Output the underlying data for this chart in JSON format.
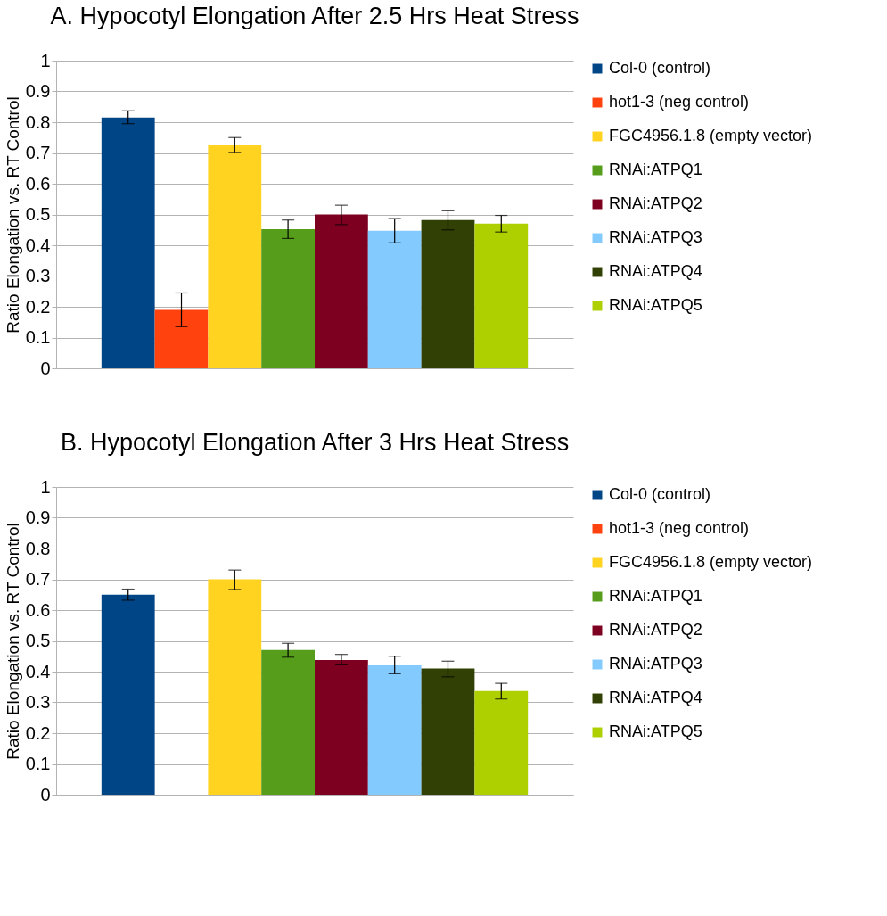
{
  "chart_data": [
    {
      "type": "bar",
      "title": "A.  Hypocotyl Elongation After 2.5 Hrs Heat Stress",
      "ylabel": "Ratio Elongation vs. RT Control",
      "categories": [
        null
      ],
      "ylim": [
        0,
        1
      ],
      "yticks": [
        0,
        0.1,
        0.2,
        0.3,
        0.4,
        0.5,
        0.6,
        0.7,
        0.8,
        0.9,
        1
      ],
      "grid": "y",
      "legend": "right",
      "series": [
        {
          "name": "Col-0 (control)",
          "color": "#004586",
          "values": [
            0.815
          ],
          "errors": [
            [
              0.795,
              0.837
            ]
          ]
        },
        {
          "name": "hot1-3 (neg control)",
          "color": "#ff420e",
          "values": [
            0.19
          ],
          "errors": [
            [
              0.135,
              0.245
            ]
          ]
        },
        {
          "name": "FGC4956.1.8 (empty vector)",
          "color": "#ffd320",
          "values": [
            0.725
          ],
          "errors": [
            [
              0.702,
              0.75
            ]
          ]
        },
        {
          "name": "RNAi:ATPQ1",
          "color": "#579d1c",
          "values": [
            0.452
          ],
          "errors": [
            [
              0.422,
              0.482
            ]
          ]
        },
        {
          "name": "RNAi:ATPQ2",
          "color": "#7e0021",
          "values": [
            0.5
          ],
          "errors": [
            [
              0.467,
              0.53
            ]
          ]
        },
        {
          "name": "RNAi:ATPQ3",
          "color": "#83caff",
          "values": [
            0.447
          ],
          "errors": [
            [
              0.408,
              0.487
            ]
          ]
        },
        {
          "name": "RNAi:ATPQ4",
          "color": "#314004",
          "values": [
            0.482
          ],
          "errors": [
            [
              0.45,
              0.512
            ]
          ]
        },
        {
          "name": "RNAi:ATPQ5",
          "color": "#aecf00",
          "values": [
            0.47
          ],
          "errors": [
            [
              0.443,
              0.497
            ]
          ]
        }
      ]
    },
    {
      "type": "bar",
      "title": "B. Hypocotyl Elongation After 3 Hrs Heat Stress",
      "ylabel": "Ratio Elongation vs. RT Control",
      "categories": [
        null
      ],
      "ylim": [
        0,
        1
      ],
      "yticks": [
        0,
        0.1,
        0.2,
        0.3,
        0.4,
        0.5,
        0.6,
        0.7,
        0.8,
        0.9,
        1
      ],
      "grid": "y",
      "legend": "right",
      "series": [
        {
          "name": "Col-0 (control)",
          "color": "#004586",
          "values": [
            0.65
          ],
          "errors": [
            [
              0.632,
              0.668
            ]
          ]
        },
        {
          "name": "hot1-3 (neg control)",
          "color": "#ff420e",
          "values": [
            null
          ],
          "errors": [
            null
          ]
        },
        {
          "name": "FGC4956.1.8 (empty vector)",
          "color": "#ffd320",
          "values": [
            0.7
          ],
          "errors": [
            [
              0.667,
              0.73
            ]
          ]
        },
        {
          "name": "RNAi:ATPQ1",
          "color": "#579d1c",
          "values": [
            0.47
          ],
          "errors": [
            [
              0.447,
              0.492
            ]
          ]
        },
        {
          "name": "RNAi:ATPQ2",
          "color": "#7e0021",
          "values": [
            0.438
          ],
          "errors": [
            [
              0.422,
              0.456
            ]
          ]
        },
        {
          "name": "RNAi:ATPQ3",
          "color": "#83caff",
          "values": [
            0.42
          ],
          "errors": [
            [
              0.393,
              0.45
            ]
          ]
        },
        {
          "name": "RNAi:ATPQ4",
          "color": "#314004",
          "values": [
            0.41
          ],
          "errors": [
            [
              0.383,
              0.434
            ]
          ]
        },
        {
          "name": "RNAi:ATPQ5",
          "color": "#aecf00",
          "values": [
            0.337
          ],
          "errors": [
            [
              0.311,
              0.362
            ]
          ]
        }
      ]
    }
  ]
}
